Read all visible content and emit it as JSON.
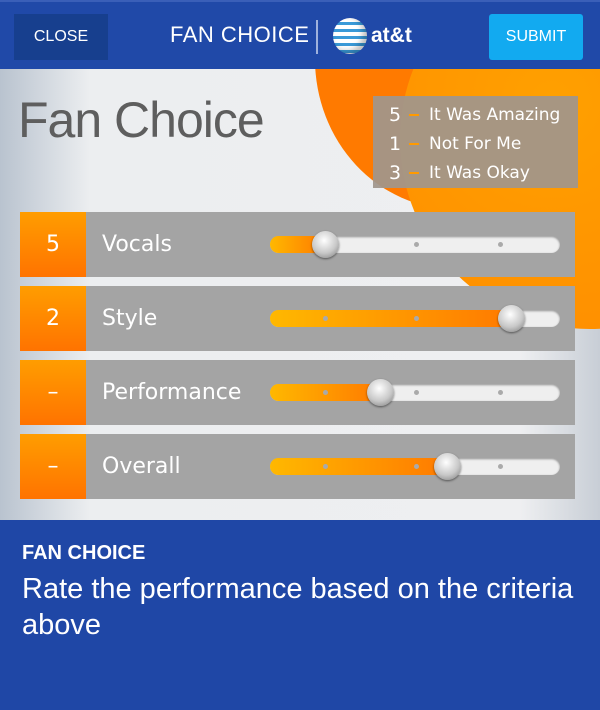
{
  "header": {
    "close_label": "CLOSE",
    "title": "FAN CHOICE",
    "brand": "at&t",
    "submit_label": "SUBMIT"
  },
  "main": {
    "title": "Fan Choice",
    "legend": [
      {
        "value": "5",
        "text": "It Was Amazing"
      },
      {
        "value": "1",
        "text": "Not For Me"
      },
      {
        "value": "3",
        "text": "It Was Okay"
      }
    ],
    "criteria": [
      {
        "score": "5",
        "label": "Vocals",
        "slider_percent": 19
      },
      {
        "score": "2",
        "label": "Style",
        "slider_percent": 83
      },
      {
        "score": "–",
        "label": "Performance",
        "slider_percent": 38
      },
      {
        "score": "–",
        "label": "Overall",
        "slider_percent": 61
      }
    ]
  },
  "footer": {
    "title": "FAN CHOICE",
    "description": "Rate the performance based on the criteria above"
  },
  "colors": {
    "header_blue": "#2049a8",
    "accent_orange": "#ff7a00",
    "submit_blue": "#12aaf0"
  }
}
